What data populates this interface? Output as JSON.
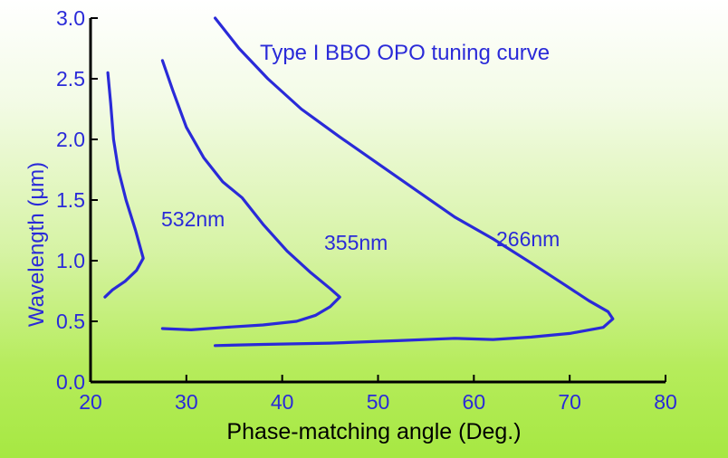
{
  "chart_data": {
    "type": "line",
    "title": "Type I BBO OPO tuning curve",
    "xlabel": "Phase-matching angle (Deg.)",
    "ylabel": "Wavelength (μm)",
    "xlim": [
      20,
      80
    ],
    "ylim": [
      0.0,
      3.0
    ],
    "xticks": [
      "20",
      "30",
      "40",
      "50",
      "60",
      "70",
      "80"
    ],
    "yticks": [
      "0.0",
      "0.5",
      "1.0",
      "1.5",
      "2.0",
      "2.5",
      "3.0"
    ],
    "grid": false,
    "series_color": "#2a2ad8",
    "series": [
      {
        "name": "532nm",
        "x": [
          21.8,
          22.1,
          22.4,
          22.9,
          23.7,
          24.7,
          25.5,
          24.8,
          23.6,
          22.3,
          21.5
        ],
        "y": [
          2.55,
          2.3,
          2.0,
          1.75,
          1.5,
          1.25,
          1.02,
          0.92,
          0.83,
          0.76,
          0.7
        ]
      },
      {
        "name": "355nm",
        "x": [
          27.5,
          28.6,
          30.0,
          31.8,
          33.8,
          35.8,
          38.0,
          40.5,
          43.0,
          45.0,
          46.0,
          45.0,
          43.5,
          41.5,
          38.0,
          34.0,
          30.5,
          27.5
        ],
        "y": [
          2.65,
          2.4,
          2.1,
          1.85,
          1.65,
          1.52,
          1.3,
          1.08,
          0.9,
          0.77,
          0.7,
          0.62,
          0.55,
          0.5,
          0.47,
          0.45,
          0.43,
          0.44
        ]
      },
      {
        "name": "266nm",
        "x": [
          33.0,
          35.5,
          38.5,
          42.0,
          46.0,
          50.0,
          54.0,
          58.0,
          62.0,
          66.0,
          69.5,
          72.0,
          74.0,
          74.5,
          73.5,
          70.0,
          66.0,
          62.0,
          58.0,
          52.0,
          45.0,
          38.0,
          33.0
        ],
        "y": [
          3.0,
          2.75,
          2.5,
          2.25,
          2.02,
          1.8,
          1.58,
          1.36,
          1.18,
          0.98,
          0.8,
          0.67,
          0.58,
          0.52,
          0.45,
          0.4,
          0.37,
          0.35,
          0.36,
          0.34,
          0.32,
          0.31,
          0.3
        ]
      }
    ]
  }
}
